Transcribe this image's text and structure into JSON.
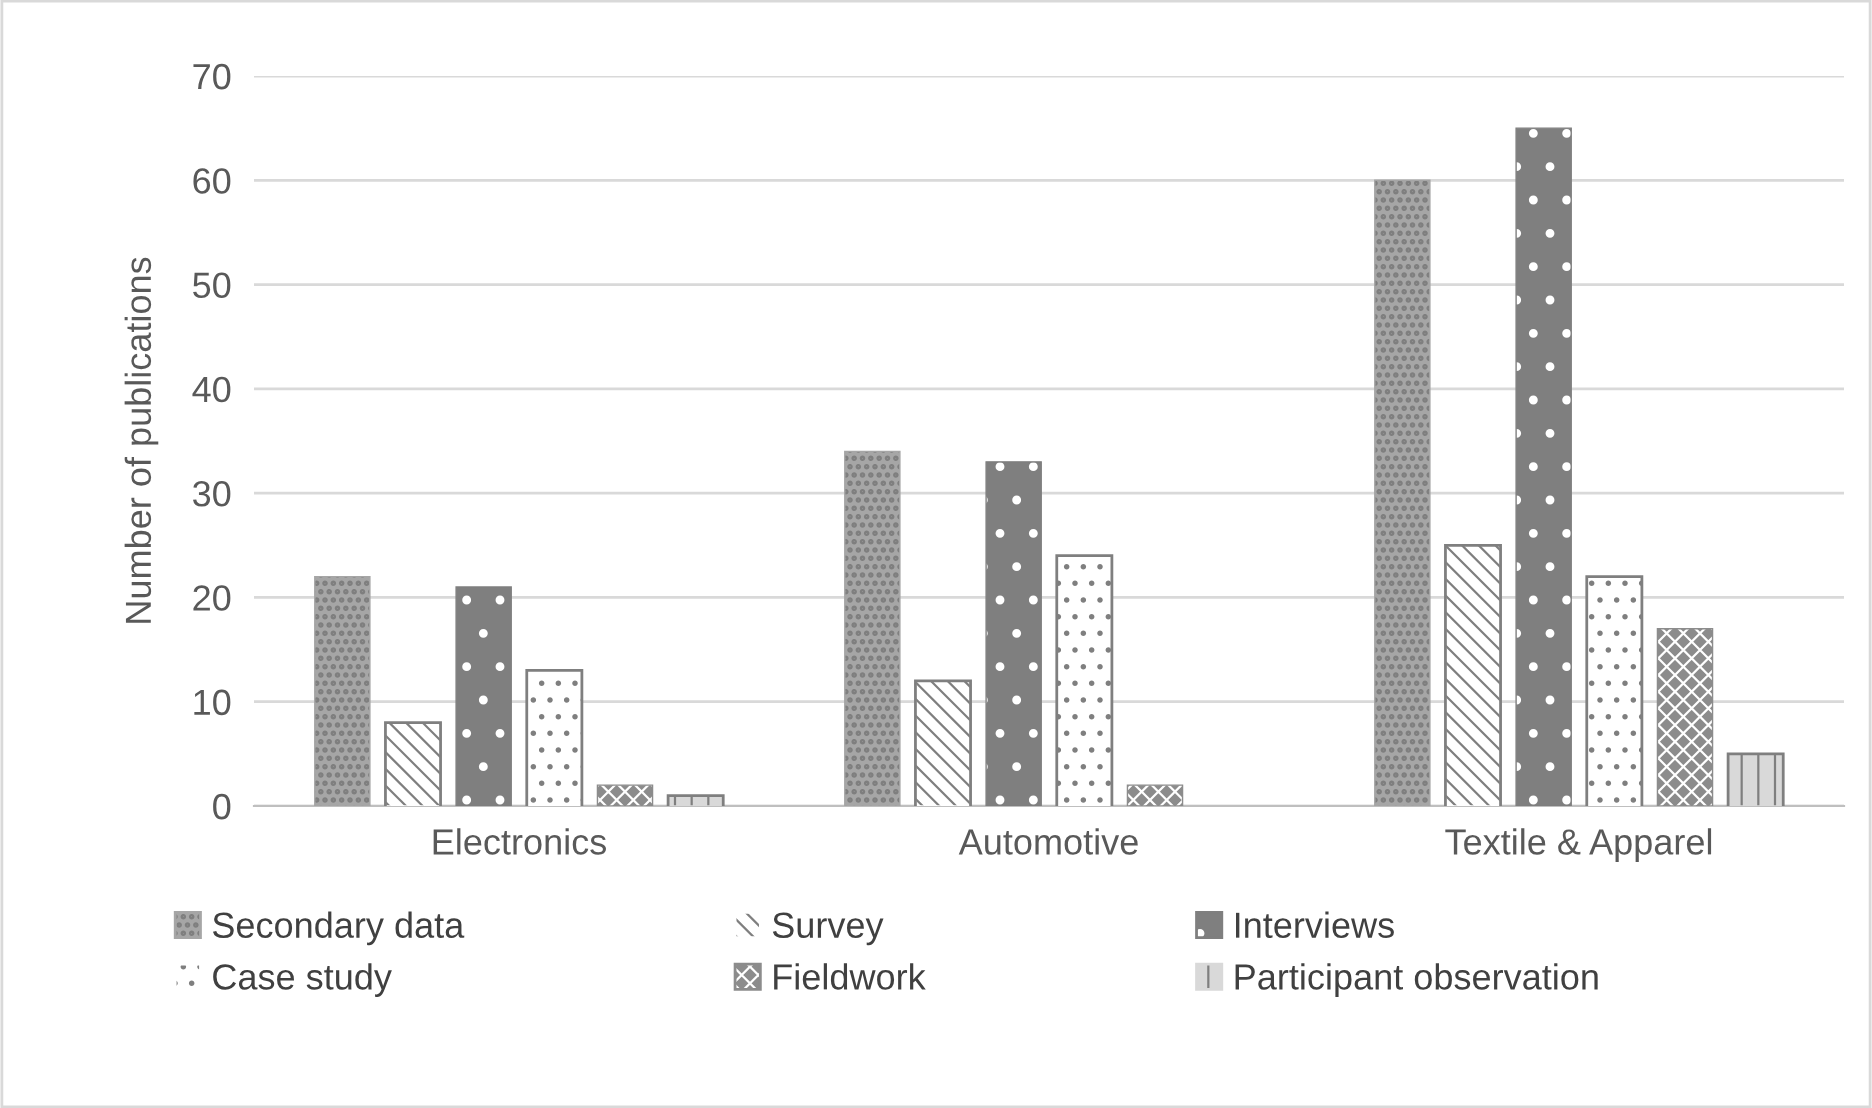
{
  "chart_data": {
    "type": "bar",
    "ylabel": "Number of publications",
    "categories": [
      "Electronics",
      "Automotive",
      "Textile & Apparel"
    ],
    "series": [
      {
        "name": "Secondary data",
        "color": "#a6a6a6",
        "values": [
          22,
          34,
          60
        ]
      },
      {
        "name": "Survey",
        "color": "#ffffff",
        "values": [
          8,
          12,
          25
        ]
      },
      {
        "name": "Interviews",
        "color": "#7f7f7f",
        "values": [
          21,
          33,
          65
        ]
      },
      {
        "name": "Case study",
        "color": "#ffffff",
        "values": [
          13,
          24,
          22
        ]
      },
      {
        "name": "Fieldwork",
        "color": "#8c8c8c",
        "values": [
          2,
          2,
          17
        ]
      },
      {
        "name": "Participant observation",
        "color": "#d9d9d9",
        "values": [
          1,
          null,
          5
        ]
      }
    ],
    "ylim": [
      0,
      70
    ],
    "yticks": [
      0,
      10,
      20,
      30,
      40,
      50,
      60,
      70
    ],
    "grid": "y",
    "legend": "bottom"
  }
}
